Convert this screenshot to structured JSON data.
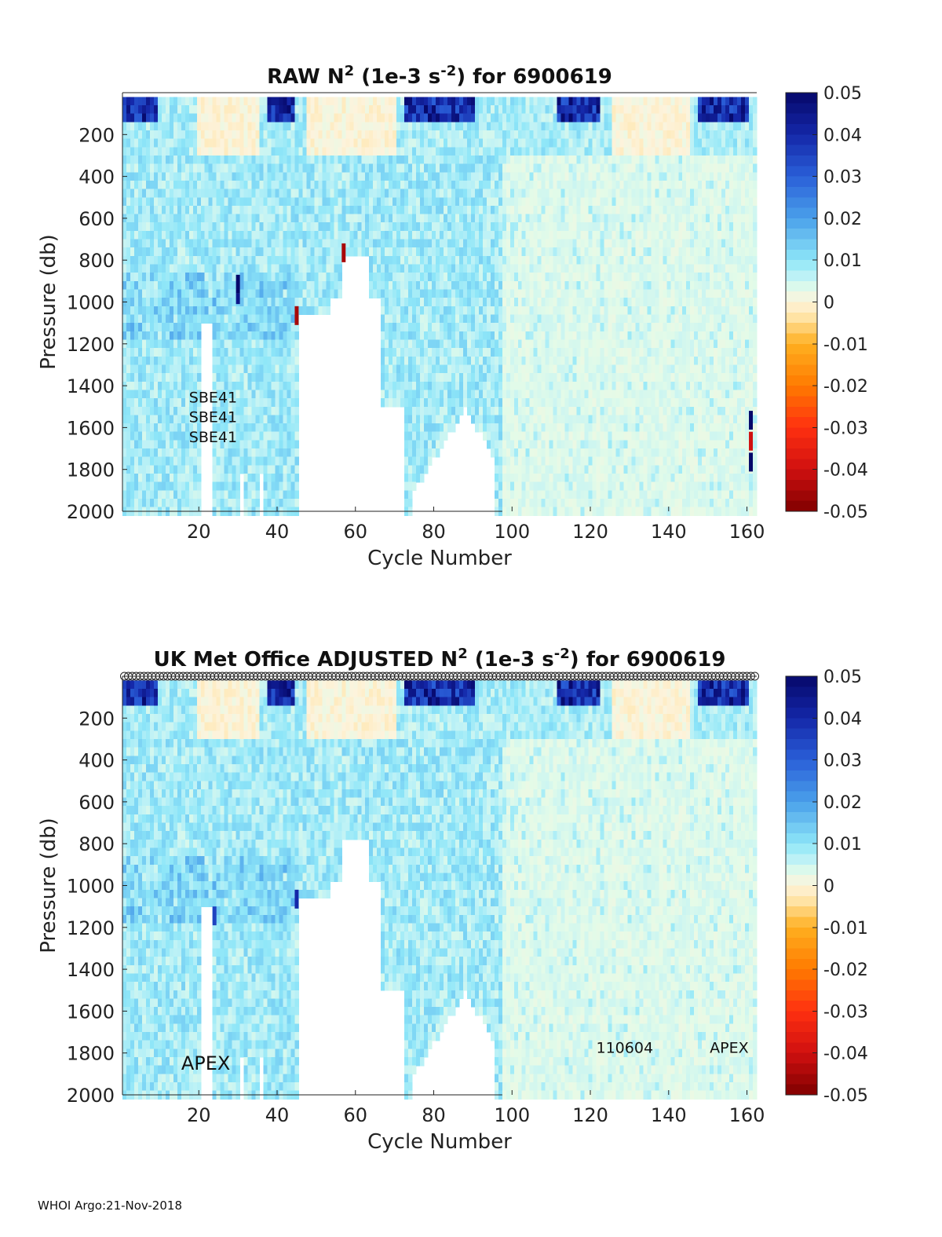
{
  "footer": "WHOI Argo:21-Nov-2018",
  "chart_data": [
    {
      "type": "heatmap",
      "title_main": "RAW N",
      "title_exp1": "2",
      "title_mid": " (1e-3 s",
      "title_exp2": "-2",
      "title_end": ") for 6900619",
      "xlabel": "Cycle Number",
      "ylabel": "Pressure (db)",
      "xlim": [
        1,
        162
      ],
      "ylim": [
        0,
        2000
      ],
      "y_reversed": true,
      "xticks": [
        20,
        40,
        60,
        80,
        100,
        120,
        140,
        160
      ],
      "yticks": [
        200,
        400,
        600,
        800,
        1000,
        1200,
        1400,
        1600,
        1800,
        2000
      ],
      "colorbar": {
        "range": [
          -0.05,
          0.05
        ],
        "ticks": [
          "0.05",
          "0.04",
          "0.03",
          "0.02",
          "0.01",
          "0",
          "-0.01",
          "-0.02",
          "-0.03",
          "-0.04",
          "-0.05"
        ]
      },
      "annotations": [
        {
          "text": "SBE41",
          "cycle": 18,
          "pressure": 1480
        },
        {
          "text": "SBE41",
          "cycle": 18,
          "pressure": 1575
        },
        {
          "text": "SBE41",
          "cycle": 18,
          "pressure": 1670
        }
      ],
      "flag_markers": false
    },
    {
      "type": "heatmap",
      "title_main": "UK Met Office  ADJUSTED N",
      "title_exp1": "2",
      "title_mid": " (1e-3 s",
      "title_exp2": "-2",
      "title_end": ") for 6900619",
      "xlabel": "Cycle Number",
      "ylabel": "Pressure (db)",
      "xlim": [
        1,
        162
      ],
      "ylim": [
        0,
        2000
      ],
      "y_reversed": true,
      "xticks": [
        20,
        40,
        60,
        80,
        100,
        120,
        140,
        160
      ],
      "yticks": [
        200,
        400,
        600,
        800,
        1000,
        1200,
        1400,
        1600,
        1800,
        2000
      ],
      "colorbar": {
        "range": [
          -0.05,
          0.05
        ],
        "ticks": [
          "0.05",
          "0.04",
          "0.03",
          "0.02",
          "0.01",
          "0",
          "-0.01",
          "-0.02",
          "-0.03",
          "-0.04",
          "-0.05"
        ]
      },
      "annotations": [
        {
          "text": "APEX",
          "cycle": 16,
          "pressure": 1880,
          "size": "large"
        },
        {
          "text": "110604",
          "cycle": 122,
          "pressure": 1800
        },
        {
          "text": "APEX",
          "cycle": 151,
          "pressure": 1800
        }
      ],
      "flag_markers": true
    }
  ],
  "palette": {
    "stops": [
      [
        -0.05,
        "#800000"
      ],
      [
        -0.04,
        "#d01010"
      ],
      [
        -0.03,
        "#ff3010"
      ],
      [
        -0.02,
        "#ff7a00"
      ],
      [
        -0.01,
        "#ffb020"
      ],
      [
        -0.004,
        "#ffe2a0"
      ],
      [
        0,
        "#fdf3dc"
      ],
      [
        0.003,
        "#e3fbe8"
      ],
      [
        0.006,
        "#bff2f6"
      ],
      [
        0.01,
        "#8ee6f8"
      ],
      [
        0.02,
        "#4aa0ea"
      ],
      [
        0.03,
        "#2a5fd8"
      ],
      [
        0.04,
        "#1427a8"
      ],
      [
        0.05,
        "#06086a"
      ]
    ]
  }
}
